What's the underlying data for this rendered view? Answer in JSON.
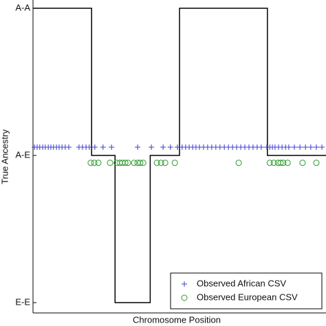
{
  "chart_data": {
    "type": "line",
    "x_label": "Chromosome Position",
    "y_label": "True Ancestry",
    "xlim": [
      0,
      100
    ],
    "ylim": [
      -0.07,
      2.056
    ],
    "yticks": [
      {
        "value": 0,
        "label": "E-E"
      },
      {
        "value": 1,
        "label": "A-E"
      },
      {
        "value": 2,
        "label": "A-A"
      }
    ],
    "legend": "lower right",
    "series": [
      {
        "style": "step",
        "color": "#000000",
        "x": [
          0,
          20,
          28,
          40,
          50,
          80,
          100
        ],
        "values": [
          2,
          1,
          0,
          1,
          2,
          1,
          1
        ]
      },
      {
        "name": "Observed African CSV",
        "style": "plus",
        "color": "#3a3ad0",
        "x": [
          0.5,
          1.4,
          2.3,
          3.3,
          4.2,
          5.2,
          6.1,
          7.0,
          8.0,
          8.9,
          9.9,
          11.0,
          12.2,
          15.7,
          16.9,
          18.1,
          19.2,
          21.1,
          23.9,
          26.8,
          35.7,
          40.4,
          44.4,
          46.9,
          49.3,
          50.9,
          52.1,
          53.3,
          54.5,
          55.6,
          56.8,
          58.2,
          59.6,
          61.0,
          62.4,
          63.8,
          65.3,
          66.7,
          68.1,
          69.5,
          70.9,
          72.3,
          73.7,
          75.1,
          76.5,
          77.9,
          79.8,
          80.8,
          81.7,
          82.6,
          83.8,
          85.0,
          86.2,
          87.3,
          89.2,
          91.1,
          93.0,
          94.8,
          96.7,
          98.6
        ],
        "values": [
          1.056,
          1.056,
          1.056,
          1.056,
          1.056,
          1.056,
          1.056,
          1.056,
          1.056,
          1.056,
          1.056,
          1.056,
          1.056,
          1.056,
          1.056,
          1.056,
          1.056,
          1.056,
          1.056,
          1.056,
          1.056,
          1.056,
          1.056,
          1.056,
          1.056,
          1.056,
          1.056,
          1.056,
          1.056,
          1.056,
          1.056,
          1.056,
          1.056,
          1.056,
          1.056,
          1.056,
          1.056,
          1.056,
          1.056,
          1.056,
          1.056,
          1.056,
          1.056,
          1.056,
          1.056,
          1.056,
          1.056,
          1.056,
          1.056,
          1.056,
          1.056,
          1.056,
          1.056,
          1.056,
          1.056,
          1.056,
          1.056,
          1.056,
          1.056,
          1.056
        ]
      },
      {
        "name": "Observed European CSV",
        "style": "circle",
        "color": "#2e9a2e",
        "x": [
          19.7,
          20.9,
          22.3,
          26.3,
          28.6,
          29.6,
          30.5,
          31.5,
          32.4,
          34.5,
          35.7,
          36.6,
          37.6,
          42.3,
          43.7,
          45.1,
          48.4,
          70.2,
          80.8,
          82.2,
          83.6,
          84.5,
          85.4,
          86.9,
          92.0,
          96.7
        ],
        "values": [
          0.95,
          0.95,
          0.95,
          0.95,
          0.95,
          0.95,
          0.95,
          0.95,
          0.95,
          0.95,
          0.95,
          0.95,
          0.95,
          0.95,
          0.95,
          0.95,
          0.95,
          0.95,
          0.95,
          0.95,
          0.95,
          0.95,
          0.95,
          0.95,
          0.95,
          0.95
        ]
      }
    ]
  }
}
